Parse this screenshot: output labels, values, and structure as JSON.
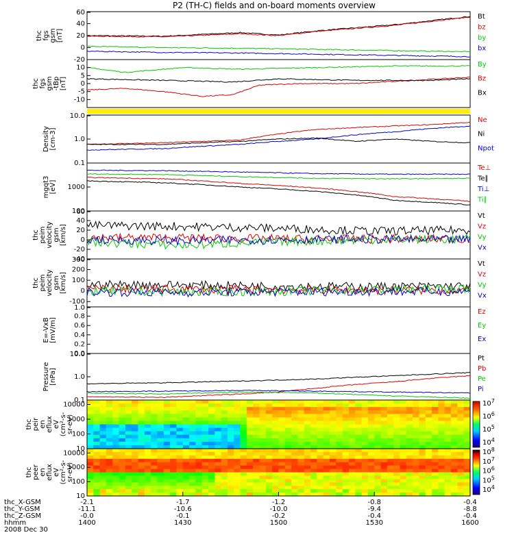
{
  "title": "P2 (TH-C) fields and on-board moments overview",
  "date_label": "2008 Dec 30",
  "chart_data": {
    "type": "line",
    "time_axis": {
      "rows": [
        {
          "label": "thc_X-GSM",
          "values": [
            "-2.1",
            "-1.7",
            "-1.2",
            "-0.8",
            "-0.4"
          ]
        },
        {
          "label": "thc_Y-GSM",
          "values": [
            "-11.1",
            "-10.6",
            "-10.0",
            "-9.4",
            "-8.8"
          ]
        },
        {
          "label": "thc_Z-GSM",
          "values": [
            "-0.0",
            "-0.1",
            "-0.2",
            "-0.4",
            "-0.4"
          ]
        },
        {
          "label": "hhmm",
          "values": [
            "1400",
            "1430",
            "1500",
            "1530",
            "1600"
          ]
        }
      ],
      "x_range": [
        "1400",
        "1600"
      ]
    },
    "panels": [
      {
        "id": "fgs-gsm",
        "ylabel": [
          "thc",
          "fgs",
          "gsm",
          "[nT]"
        ],
        "ylim": [
          -20,
          60
        ],
        "yticks": [
          "60",
          "40",
          "20",
          "0",
          "-20"
        ],
        "legend": [
          {
            "name": "Bt",
            "color": "#000000"
          },
          {
            "name": "bz",
            "color": "#e00000"
          },
          {
            "name": "by",
            "color": "#00cc00"
          },
          {
            "name": "bx",
            "color": "#0000cc"
          }
        ],
        "series": [
          {
            "name": "Bt",
            "x": [
              0,
              0.2,
              0.4,
              0.5,
              0.6,
              0.8,
              1.0
            ],
            "y": [
              20,
              19,
              25,
              21,
              28,
              38,
              52
            ]
          },
          {
            "name": "bz",
            "x": [
              0,
              0.2,
              0.4,
              0.5,
              0.6,
              0.8,
              1.0
            ],
            "y": [
              19,
              18,
              23,
              20,
              27,
              37,
              51
            ]
          },
          {
            "name": "by",
            "x": [
              0,
              0.2,
              0.4,
              0.6,
              0.8,
              1.0
            ],
            "y": [
              2,
              0,
              -1,
              -3,
              -5,
              -7
            ]
          },
          {
            "name": "bx",
            "x": [
              0,
              0.2,
              0.4,
              0.6,
              0.8,
              1.0
            ],
            "y": [
              -6,
              -8,
              -9,
              -11,
              -13,
              -15
            ]
          }
        ]
      },
      {
        "id": "fgs-dsl",
        "ylabel": [
          "thc",
          "fgs",
          "gsm",
          "-tBp",
          "[nT]"
        ],
        "ylim": [
          -15,
          15
        ],
        "yticks": [
          "10",
          "5",
          "0",
          "-5",
          "-10"
        ],
        "legend": [
          {
            "name": "By",
            "color": "#00cc00"
          },
          {
            "name": "Bz",
            "color": "#e00000"
          },
          {
            "name": "Bx",
            "color": "#000000"
          }
        ],
        "series": [
          {
            "name": "By",
            "x": [
              0,
              0.1,
              0.25,
              0.4,
              0.6,
              0.8,
              1.0
            ],
            "y": [
              10,
              7,
              10,
              9,
              10,
              11,
              11
            ]
          },
          {
            "name": "Bz",
            "x": [
              0,
              0.1,
              0.2,
              0.3,
              0.38,
              0.45,
              0.55,
              0.7,
              0.85,
              1.0
            ],
            "y": [
              -4,
              -3,
              -5,
              -8,
              -7,
              -1,
              0,
              0,
              2,
              4
            ]
          },
          {
            "name": "Bx",
            "x": [
              0,
              0.2,
              0.38,
              0.5,
              0.7,
              0.9,
              1.0
            ],
            "y": [
              3,
              2,
              1,
              3,
              2,
              2,
              3
            ]
          }
        ]
      },
      {
        "id": "mode-bar",
        "type": "bar-strip",
        "color": "#ffee00"
      },
      {
        "id": "density",
        "ylabel": [
          "Density",
          "[cm-3]"
        ],
        "scale": "log",
        "ylim": [
          0.1,
          10.0
        ],
        "yticks": [
          "10.0",
          "1.0",
          "0.1"
        ],
        "legend": [
          {
            "name": "Ne",
            "color": "#e00000"
          },
          {
            "name": "Ni",
            "color": "#000000"
          },
          {
            "name": "Npot",
            "color": "#0000cc"
          }
        ],
        "series": [
          {
            "name": "Ne",
            "x": [
              0,
              0.2,
              0.4,
              0.5,
              0.6,
              0.7,
              0.8,
              0.9,
              1.0
            ],
            "y": [
              0.6,
              0.7,
              0.9,
              1.6,
              2.5,
              3.0,
              3.5,
              4.0,
              5.0
            ]
          },
          {
            "name": "Ni",
            "x": [
              0,
              0.2,
              0.4,
              0.5,
              0.6,
              0.7,
              0.8,
              0.9,
              1.0
            ],
            "y": [
              0.6,
              0.6,
              0.8,
              1.0,
              1.1,
              0.8,
              1.0,
              0.8,
              0.7
            ]
          },
          {
            "name": "Npot",
            "x": [
              0,
              0.2,
              0.4,
              0.6,
              0.8,
              1.0
            ],
            "y": [
              0.35,
              0.4,
              0.6,
              1.0,
              2.0,
              3.5
            ]
          }
        ]
      },
      {
        "id": "temperature",
        "ylabel": [
          "mgqt3",
          "[eV]"
        ],
        "scale": "log",
        "ylim": [
          100,
          10000
        ],
        "yticks": [
          "1000",
          "100"
        ],
        "legend": [
          {
            "name": "Te⊥",
            "color": "#e00000"
          },
          {
            "name": "Te∥",
            "color": "#000000"
          },
          {
            "name": "Ti⊥",
            "color": "#0000cc"
          },
          {
            "name": "Ti∥",
            "color": "#00cc00"
          }
        ],
        "series": [
          {
            "name": "Ti⊥",
            "x": [
              0,
              0.2,
              0.4,
              0.6,
              0.8,
              1.0
            ],
            "y": [
              5000,
              4800,
              4200,
              3600,
              3400,
              3400
            ]
          },
          {
            "name": "Ti∥",
            "x": [
              0,
              0.2,
              0.4,
              0.6,
              0.8,
              1.0
            ],
            "y": [
              3500,
              3300,
              2700,
              2300,
              2200,
              2300
            ]
          },
          {
            "name": "Te⊥",
            "x": [
              0,
              0.2,
              0.4,
              0.6,
              0.8,
              1.0
            ],
            "y": [
              2500,
              2200,
              1400,
              900,
              400,
              250
            ]
          },
          {
            "name": "Te∥",
            "x": [
              0,
              0.2,
              0.4,
              0.6,
              0.8,
              1.0
            ],
            "y": [
              1800,
              1500,
              1000,
              650,
              280,
              180
            ]
          }
        ]
      },
      {
        "id": "peim-velocity-1",
        "ylabel": [
          "thc",
          "peim",
          "velocity",
          "gsm",
          "[km/s]"
        ],
        "ylim": [
          -40,
          60
        ],
        "yticks": [
          "60",
          "40",
          "20",
          "0",
          "-20",
          "-40"
        ],
        "legend": [
          {
            "name": "Vt",
            "color": "#000000"
          },
          {
            "name": "Vz",
            "color": "#e00000"
          },
          {
            "name": "Vy",
            "color": "#00cc00"
          },
          {
            "name": "Vx",
            "color": "#0000cc"
          }
        ],
        "series": [
          {
            "name": "Vt",
            "x": [
              0,
              0.25,
              0.5,
              0.75,
              1.0
            ],
            "y": [
              30,
              28,
              24,
              18,
              20
            ]
          },
          {
            "name": "Vz",
            "x": [
              0,
              0.25,
              0.5,
              0.75,
              1.0
            ],
            "y": [
              5,
              4,
              2,
              1,
              2
            ]
          },
          {
            "name": "Vy",
            "x": [
              0,
              0.25,
              0.5,
              0.75,
              1.0
            ],
            "y": [
              -5,
              -12,
              -4,
              0,
              1
            ]
          },
          {
            "name": "Vx",
            "x": [
              0,
              0.25,
              0.5,
              0.75,
              1.0
            ],
            "y": [
              0,
              -2,
              0,
              1,
              0
            ]
          }
        ]
      },
      {
        "id": "peim-velocity-2",
        "ylabel": [
          "thc",
          "peim",
          "velocity",
          "gsm",
          "[km/s]"
        ],
        "ylim": [
          -150,
          300
        ],
        "yticks": [
          "300",
          "200",
          "100",
          "0",
          "-100"
        ],
        "legend": [
          {
            "name": "Vt",
            "color": "#000000"
          },
          {
            "name": "Vz",
            "color": "#e00000"
          },
          {
            "name": "Vy",
            "color": "#00cc00"
          },
          {
            "name": "Vx",
            "color": "#0000cc"
          }
        ],
        "series": [
          {
            "name": "Vt",
            "x": [
              0,
              0.25,
              0.5,
              0.75,
              1.0
            ],
            "y": [
              60,
              55,
              45,
              40,
              45
            ]
          },
          {
            "name": "Vz",
            "x": [
              0,
              0.25,
              0.5,
              0.75,
              1.0
            ],
            "y": [
              20,
              15,
              10,
              5,
              5
            ]
          },
          {
            "name": "Vy",
            "x": [
              0,
              0.25,
              0.5,
              0.75,
              1.0
            ],
            "y": [
              0,
              -10,
              -5,
              10,
              20
            ]
          },
          {
            "name": "Vx",
            "x": [
              0,
              0.25,
              0.5,
              0.75,
              1.0
            ],
            "y": [
              -10,
              -15,
              -10,
              -5,
              -5
            ]
          }
        ]
      },
      {
        "id": "efield",
        "ylabel": [
          "E=-VxB",
          "[mV/m]"
        ],
        "ylim": [
          0.0,
          1.0
        ],
        "yticks": [
          "1.0",
          "0.8",
          "0.6",
          "0.4",
          "0.2",
          "0.0"
        ],
        "legend": [
          {
            "name": "Ez",
            "color": "#e00000"
          },
          {
            "name": "Ey",
            "color": "#00cc00"
          },
          {
            "name": "Ex",
            "color": "#0000cc"
          }
        ],
        "series": []
      },
      {
        "id": "pressure",
        "ylabel": [
          "Pressure",
          "[nPa]"
        ],
        "scale": "log",
        "ylim": [
          0.1,
          10.0
        ],
        "yticks": [
          "10.0",
          "1.0",
          "0.1"
        ],
        "legend": [
          {
            "name": "Pt",
            "color": "#000000"
          },
          {
            "name": "Pb",
            "color": "#e00000"
          },
          {
            "name": "Pe",
            "color": "#00cc00"
          },
          {
            "name": "Pi",
            "color": "#0000cc"
          }
        ],
        "series": [
          {
            "name": "Pt",
            "x": [
              0,
              0.2,
              0.4,
              0.6,
              0.8,
              1.0
            ],
            "y": [
              0.5,
              0.55,
              0.65,
              0.8,
              1.1,
              1.5
            ]
          },
          {
            "name": "Pb",
            "x": [
              0,
              0.2,
              0.4,
              0.5,
              0.6,
              0.8,
              1.0
            ],
            "y": [
              0.14,
              0.13,
              0.18,
              0.22,
              0.32,
              0.6,
              1.1
            ]
          },
          {
            "name": "Pe",
            "x": [
              0,
              0.2,
              0.4,
              0.6,
              0.8,
              1.0
            ],
            "y": [
              0.2,
              0.18,
              0.22,
              0.2,
              0.15,
              0.12
            ]
          },
          {
            "name": "Pi",
            "x": [
              0,
              0.2,
              0.4,
              0.6,
              0.8,
              1.0
            ],
            "y": [
              0.23,
              0.24,
              0.26,
              0.24,
              0.22,
              0.2
            ]
          }
        ]
      },
      {
        "id": "peir-spectrogram",
        "type": "heatmap",
        "ylabel": [
          "thc",
          "peir",
          "en",
          "eflux",
          "eV",
          "(cm²-s-",
          "sr-eV)"
        ],
        "scale": "log",
        "ylim": [
          10,
          20000
        ],
        "yticks": [
          "10000",
          "1000",
          "100",
          "10"
        ],
        "colorbar": {
          "ticks": [
            "10⁷",
            "10⁶",
            "10⁵",
            "10⁴"
          ]
        }
      },
      {
        "id": "peer-spectrogram",
        "type": "heatmap",
        "ylabel": [
          "thc",
          "peer",
          "en",
          "eflux",
          "eV",
          "(cm²-s-",
          "sr-eV)"
        ],
        "scale": "log",
        "ylim": [
          10,
          20000
        ],
        "yticks": [
          "10000",
          "1000",
          "100",
          "10"
        ],
        "colorbar": {
          "ticks": [
            "10⁸",
            "10⁷",
            "10⁶",
            "10⁵",
            "10⁴"
          ]
        }
      }
    ]
  }
}
